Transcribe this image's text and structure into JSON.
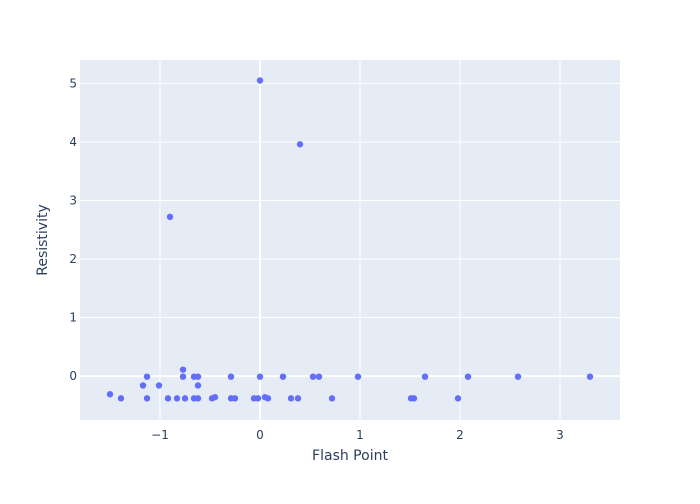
{
  "chart_data": {
    "type": "scatter",
    "title": "",
    "xlabel": "Flash Point",
    "ylabel": "Resistivity",
    "xlim": [
      -1.8,
      3.6
    ],
    "ylim": [
      -0.75,
      5.4
    ],
    "x_ticks": [
      -1,
      0,
      1,
      2,
      3
    ],
    "x_tick_labels": [
      "−1",
      "0",
      "1",
      "2",
      "3"
    ],
    "y_ticks": [
      0,
      1,
      2,
      3,
      4,
      5
    ],
    "y_tick_labels": [
      "0",
      "1",
      "2",
      "3",
      "4",
      "5"
    ],
    "grid": true,
    "legend": "none",
    "colors": {
      "marker": "#636efa",
      "plot_bg": "#e5ecf6",
      "grid": "#ffffff",
      "text": "#2a3f5f"
    },
    "series": [
      {
        "points": [
          [
            -1.5,
            -0.31
          ],
          [
            -1.39,
            -0.38
          ],
          [
            -1.17,
            -0.16
          ],
          [
            -1.13,
            -0.01
          ],
          [
            -1.13,
            -0.38
          ],
          [
            -1.01,
            -0.16
          ],
          [
            -0.92,
            -0.38
          ],
          [
            -0.9,
            2.72
          ],
          [
            -0.83,
            -0.38
          ],
          [
            -0.77,
            0.11
          ],
          [
            -0.77,
            -0.01
          ],
          [
            -0.75,
            -0.38
          ],
          [
            -0.66,
            -0.01
          ],
          [
            -0.66,
            -0.38
          ],
          [
            -0.62,
            -0.16
          ],
          [
            -0.62,
            -0.01
          ],
          [
            -0.62,
            -0.38
          ],
          [
            -0.48,
            -0.38
          ],
          [
            -0.45,
            -0.36
          ],
          [
            -0.29,
            -0.01
          ],
          [
            -0.29,
            -0.38
          ],
          [
            -0.25,
            -0.38
          ],
          [
            -0.06,
            -0.38
          ],
          [
            -0.02,
            -0.38
          ],
          [
            0.0,
            -0.01
          ],
          [
            0.0,
            5.05
          ],
          [
            0.05,
            -0.36
          ],
          [
            0.08,
            -0.38
          ],
          [
            0.23,
            -0.01
          ],
          [
            0.31,
            -0.38
          ],
          [
            0.38,
            -0.38
          ],
          [
            0.4,
            3.96
          ],
          [
            0.53,
            -0.01
          ],
          [
            0.59,
            -0.01
          ],
          [
            0.72,
            -0.38
          ],
          [
            0.98,
            -0.01
          ],
          [
            1.51,
            -0.38
          ],
          [
            1.54,
            -0.38
          ],
          [
            1.65,
            -0.01
          ],
          [
            1.98,
            -0.38
          ],
          [
            2.08,
            -0.01
          ],
          [
            2.58,
            -0.01
          ],
          [
            3.3,
            -0.01
          ]
        ]
      }
    ]
  }
}
